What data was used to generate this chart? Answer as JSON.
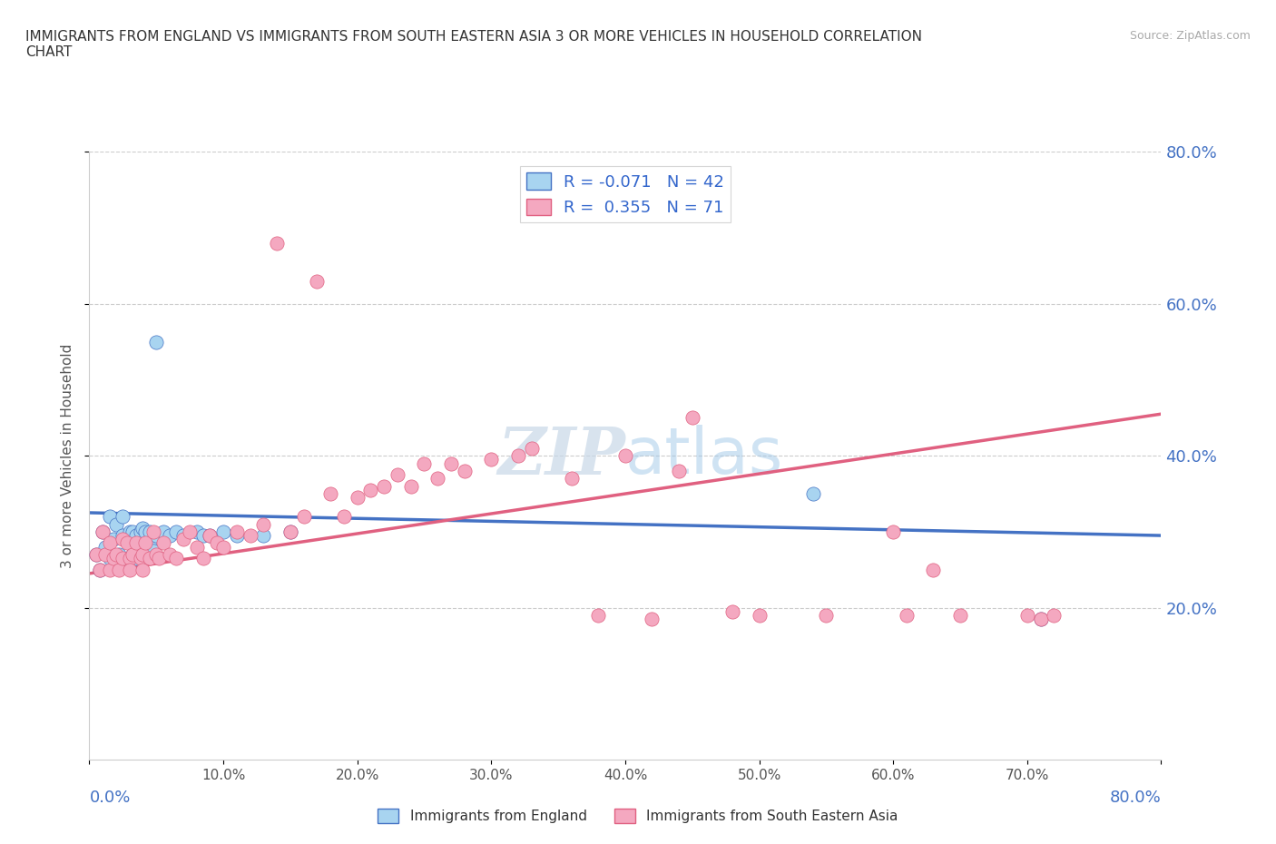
{
  "title": "IMMIGRANTS FROM ENGLAND VS IMMIGRANTS FROM SOUTH EASTERN ASIA 3 OR MORE VEHICLES IN HOUSEHOLD CORRELATION\nCHART",
  "source": "Source: ZipAtlas.com",
  "ylabel": "3 or more Vehicles in Household",
  "xlim": [
    0.0,
    0.8
  ],
  "ylim": [
    0.0,
    0.8
  ],
  "xtick_positions": [
    0.0,
    0.1,
    0.2,
    0.3,
    0.4,
    0.5,
    0.6,
    0.7,
    0.8
  ],
  "ytick_positions": [
    0.2,
    0.4,
    0.6,
    0.8
  ],
  "england_color": "#A8D4F0",
  "sea_color": "#F4A8C0",
  "england_line_color": "#4472C4",
  "sea_line_color": "#E06080",
  "legend_england_label": "R = -0.071   N = 42",
  "legend_sea_label": "R =  0.355   N = 71",
  "watermark_color": "#C8D8E8",
  "england_x": [
    0.005,
    0.008,
    0.01,
    0.012,
    0.015,
    0.015,
    0.018,
    0.02,
    0.02,
    0.022,
    0.025,
    0.025,
    0.028,
    0.028,
    0.03,
    0.03,
    0.032,
    0.032,
    0.035,
    0.035,
    0.038,
    0.04,
    0.04,
    0.042,
    0.045,
    0.045,
    0.048,
    0.05,
    0.05,
    0.055,
    0.06,
    0.065,
    0.07,
    0.08,
    0.085,
    0.09,
    0.1,
    0.11,
    0.13,
    0.15,
    0.54,
    0.71
  ],
  "england_y": [
    0.27,
    0.25,
    0.3,
    0.28,
    0.32,
    0.265,
    0.29,
    0.31,
    0.265,
    0.27,
    0.295,
    0.32,
    0.26,
    0.29,
    0.3,
    0.265,
    0.3,
    0.27,
    0.295,
    0.265,
    0.3,
    0.265,
    0.305,
    0.3,
    0.285,
    0.3,
    0.275,
    0.55,
    0.295,
    0.3,
    0.295,
    0.3,
    0.295,
    0.3,
    0.295,
    0.295,
    0.3,
    0.295,
    0.295,
    0.3,
    0.35,
    0.185
  ],
  "sea_x": [
    0.005,
    0.008,
    0.01,
    0.012,
    0.015,
    0.015,
    0.018,
    0.02,
    0.022,
    0.025,
    0.025,
    0.028,
    0.03,
    0.03,
    0.032,
    0.035,
    0.038,
    0.04,
    0.04,
    0.042,
    0.045,
    0.048,
    0.05,
    0.052,
    0.055,
    0.06,
    0.065,
    0.07,
    0.075,
    0.08,
    0.085,
    0.09,
    0.095,
    0.1,
    0.11,
    0.12,
    0.13,
    0.14,
    0.15,
    0.16,
    0.17,
    0.18,
    0.19,
    0.2,
    0.21,
    0.22,
    0.23,
    0.24,
    0.25,
    0.26,
    0.27,
    0.28,
    0.3,
    0.32,
    0.33,
    0.36,
    0.38,
    0.4,
    0.42,
    0.44,
    0.45,
    0.48,
    0.5,
    0.55,
    0.6,
    0.61,
    0.63,
    0.65,
    0.7,
    0.71,
    0.72
  ],
  "sea_y": [
    0.27,
    0.25,
    0.3,
    0.27,
    0.25,
    0.285,
    0.265,
    0.27,
    0.25,
    0.29,
    0.265,
    0.285,
    0.265,
    0.25,
    0.27,
    0.285,
    0.265,
    0.27,
    0.25,
    0.285,
    0.265,
    0.3,
    0.27,
    0.265,
    0.285,
    0.27,
    0.265,
    0.29,
    0.3,
    0.28,
    0.265,
    0.295,
    0.285,
    0.28,
    0.3,
    0.295,
    0.31,
    0.68,
    0.3,
    0.32,
    0.63,
    0.35,
    0.32,
    0.345,
    0.355,
    0.36,
    0.375,
    0.36,
    0.39,
    0.37,
    0.39,
    0.38,
    0.395,
    0.4,
    0.41,
    0.37,
    0.19,
    0.4,
    0.185,
    0.38,
    0.45,
    0.195,
    0.19,
    0.19,
    0.3,
    0.19,
    0.25,
    0.19,
    0.19,
    0.185,
    0.19
  ]
}
